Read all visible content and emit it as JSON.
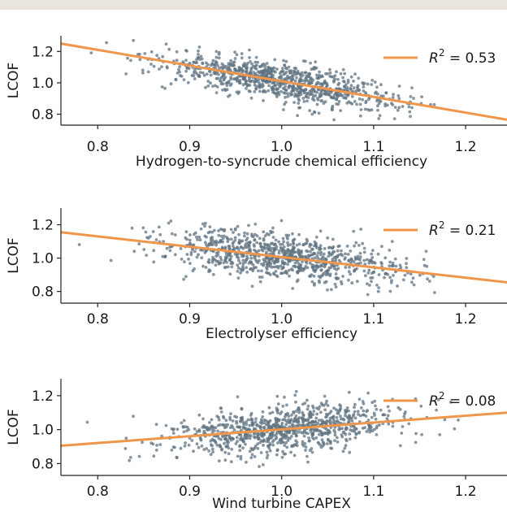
{
  "colors": {
    "scatter": "#5f7381",
    "fit_line": "#f0964a",
    "axis": "#222222"
  },
  "chart_data": [
    {
      "type": "scatter",
      "title": "",
      "xlabel": "Hydrogen-to-syncrude chemical efficiency",
      "ylabel": "LCOF",
      "xlim": [
        0.76,
        1.245
      ],
      "ylim": [
        0.73,
        1.3
      ],
      "xticks": [
        "0.8",
        "0.9",
        "1.0",
        "1.1",
        "1.2"
      ],
      "yticks": [
        "0.8",
        "1.0",
        "1.2"
      ],
      "legend": {
        "label_prefix": "R",
        "label_exp": "2",
        "label_value": "= 0.53",
        "placement": "upper right"
      },
      "r_squared": 0.53,
      "fit_line": {
        "x": [
          0.76,
          1.245
        ],
        "y": [
          1.25,
          0.765
        ]
      },
      "scatter_center": [
        1.0,
        1.0
      ],
      "scatter_spread": [
        0.065,
        0.075
      ],
      "num_points": 900,
      "grid": false
    },
    {
      "type": "scatter",
      "title": "",
      "xlabel": "Electrolyser efficiency",
      "ylabel": "LCOF",
      "xlim": [
        0.76,
        1.245
      ],
      "ylim": [
        0.73,
        1.3
      ],
      "xticks": [
        "0.8",
        "0.9",
        "1.0",
        "1.1",
        "1.2"
      ],
      "yticks": [
        "0.8",
        "1.0",
        "1.2"
      ],
      "legend": {
        "label_prefix": "R",
        "label_exp": "2",
        "label_value": "= 0.21",
        "placement": "upper right"
      },
      "r_squared": 0.21,
      "fit_line": {
        "x": [
          0.76,
          1.245
        ],
        "y": [
          1.155,
          0.855
        ]
      },
      "scatter_center": [
        1.0,
        1.0
      ],
      "scatter_spread": [
        0.065,
        0.085
      ],
      "num_points": 900,
      "grid": false
    },
    {
      "type": "scatter",
      "title": "",
      "xlabel": "Wind turbine CAPEX",
      "ylabel": "LCOF",
      "xlim": [
        0.76,
        1.245
      ],
      "ylim": [
        0.73,
        1.3
      ],
      "xticks": [
        "0.8",
        "0.9",
        "1.0",
        "1.1",
        "1.2"
      ],
      "yticks": [
        "0.8",
        "1.0",
        "1.2"
      ],
      "legend": {
        "label_prefix": "R",
        "label_exp": "2",
        "label_value": "= 0.08",
        "placement": "upper right"
      },
      "r_squared": 0.08,
      "fit_line": {
        "x": [
          0.76,
          1.245
        ],
        "y": [
          0.905,
          1.1
        ]
      },
      "scatter_center": [
        1.0,
        1.0
      ],
      "scatter_spread": [
        0.065,
        0.09
      ],
      "num_points": 900,
      "grid": false
    }
  ]
}
